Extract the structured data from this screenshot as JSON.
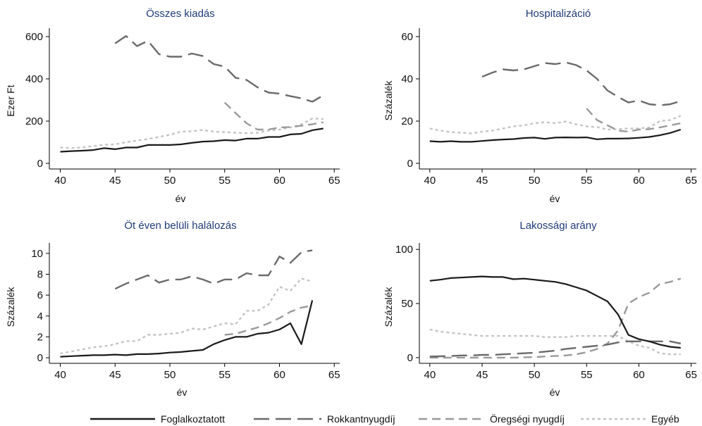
{
  "legend": [
    {
      "name": "Foglalkoztatott",
      "color": "#1a1a1a",
      "dash": ""
    },
    {
      "name": "Rokkantnyugdíj",
      "color": "#6b6b6b",
      "dash": "22,9"
    },
    {
      "name": "Öregségi nyugdíj",
      "color": "#9a9a9a",
      "dash": "12,7"
    },
    {
      "name": "Egyéb",
      "color": "#c4c4c4",
      "dash": "4,4"
    }
  ],
  "chart_data": [
    {
      "type": "line",
      "title": "Összes kiadás",
      "xlabel": "év",
      "ylabel": "Ezer Ft",
      "xlim": [
        39,
        65.5
      ],
      "ylim": [
        -20,
        640
      ],
      "xticks": [
        40,
        45,
        50,
        55,
        60,
        65
      ],
      "yticks": [
        0,
        200,
        400,
        600
      ],
      "series": [
        {
          "name": "Foglalkoztatott",
          "x": [
            40,
            41,
            42,
            43,
            44,
            45,
            46,
            47,
            48,
            49,
            50,
            51,
            52,
            53,
            54,
            55,
            56,
            57,
            58,
            59,
            60,
            61,
            62,
            63,
            64
          ],
          "y": [
            55,
            58,
            60,
            63,
            72,
            67,
            75,
            75,
            87,
            87,
            87,
            90,
            97,
            103,
            105,
            110,
            108,
            117,
            117,
            125,
            125,
            137,
            140,
            157,
            165
          ]
        },
        {
          "name": "Rokkantnyugdíj",
          "x": [
            45,
            46,
            47,
            48,
            49,
            50,
            51,
            52,
            53,
            54,
            55,
            56,
            57,
            58,
            59,
            60,
            61,
            62,
            63,
            64
          ],
          "y": [
            568,
            603,
            555,
            580,
            517,
            505,
            505,
            520,
            508,
            470,
            458,
            405,
            395,
            360,
            335,
            330,
            318,
            308,
            292,
            322
          ]
        },
        {
          "name": "Öregségi nyugdíj",
          "x": [
            55,
            56,
            57,
            58,
            59,
            60,
            61,
            62,
            63,
            64
          ],
          "y": [
            288,
            238,
            190,
            160,
            160,
            170,
            172,
            178,
            185,
            195
          ]
        },
        {
          "name": "Egyéb",
          "x": [
            40,
            41,
            42,
            43,
            44,
            45,
            46,
            47,
            48,
            49,
            50,
            51,
            52,
            53,
            54,
            55,
            56,
            57,
            58,
            59,
            60,
            61,
            62,
            63,
            64
          ],
          "y": [
            75,
            73,
            75,
            82,
            88,
            90,
            100,
            108,
            115,
            125,
            135,
            150,
            152,
            158,
            150,
            148,
            145,
            143,
            145,
            155,
            160,
            170,
            185,
            212,
            210
          ]
        }
      ]
    },
    {
      "type": "line",
      "title": "Hospitalizáció",
      "xlabel": "év",
      "ylabel": "Százalék",
      "xlim": [
        39,
        65.5
      ],
      "ylim": [
        -2,
        64
      ],
      "xticks": [
        40,
        45,
        50,
        55,
        60,
        65
      ],
      "yticks": [
        0,
        20,
        40,
        60
      ],
      "series": [
        {
          "name": "Foglalkoztatott",
          "x": [
            40,
            41,
            42,
            43,
            44,
            45,
            46,
            47,
            48,
            49,
            50,
            51,
            52,
            53,
            54,
            55,
            56,
            57,
            58,
            59,
            60,
            61,
            62,
            63,
            64
          ],
          "y": [
            10.5,
            10.2,
            10.5,
            10.2,
            10.2,
            10.6,
            11,
            11.3,
            11.5,
            12,
            12.2,
            11.6,
            12.2,
            12.3,
            12.2,
            12.3,
            11.4,
            11.7,
            11.7,
            11.8,
            12.1,
            12.5,
            13.3,
            14.4,
            16
          ]
        },
        {
          "name": "Rokkantnyugdíj",
          "x": [
            45,
            46,
            47,
            48,
            49,
            50,
            51,
            52,
            53,
            54,
            55,
            56,
            57,
            58,
            59,
            60,
            61,
            62,
            63,
            64
          ],
          "y": [
            41,
            43,
            44.5,
            44,
            44.5,
            46,
            47.5,
            47,
            47.8,
            46.5,
            44,
            40,
            34.5,
            31.5,
            28.8,
            29.8,
            28,
            27.5,
            28,
            29.5
          ]
        },
        {
          "name": "Öregségi nyugdíj",
          "x": [
            55,
            56,
            57,
            58,
            59,
            60,
            61,
            62,
            63,
            64
          ],
          "y": [
            26,
            20.5,
            18,
            15.5,
            15,
            16,
            16.2,
            17,
            18,
            19
          ]
        },
        {
          "name": "Egyéb",
          "x": [
            40,
            41,
            42,
            43,
            44,
            45,
            46,
            47,
            48,
            49,
            50,
            51,
            52,
            53,
            54,
            55,
            56,
            57,
            58,
            59,
            60,
            61,
            62,
            63,
            64
          ],
          "y": [
            16.5,
            15.5,
            14.8,
            14.5,
            14.2,
            15,
            15.5,
            16.5,
            17.5,
            18,
            19,
            19.5,
            19,
            19.8,
            18.5,
            17.5,
            17.2,
            16,
            16.2,
            16.5,
            16.5,
            17,
            20,
            20.5,
            22.5
          ]
        }
      ]
    },
    {
      "type": "line",
      "title": "Öt éven belüli halálozás",
      "xlabel": "év",
      "ylabel": "Százalék",
      "xlim": [
        39,
        65.5
      ],
      "ylim": [
        -0.4,
        11
      ],
      "xticks": [
        40,
        45,
        50,
        55,
        60,
        65
      ],
      "yticks": [
        0,
        2,
        4,
        6,
        8,
        10
      ],
      "series": [
        {
          "name": "Foglalkoztatott",
          "x": [
            40,
            41,
            42,
            43,
            44,
            45,
            46,
            47,
            48,
            49,
            50,
            51,
            52,
            53,
            54,
            55,
            56,
            57,
            58,
            59,
            60,
            61,
            62,
            63
          ],
          "y": [
            0.1,
            0.15,
            0.2,
            0.25,
            0.25,
            0.3,
            0.25,
            0.35,
            0.35,
            0.4,
            0.5,
            0.55,
            0.65,
            0.75,
            1.3,
            1.7,
            2,
            2,
            2.3,
            2.4,
            2.7,
            3.3,
            1.3,
            5.5
          ]
        },
        {
          "name": "Rokkantnyugdíj",
          "x": [
            45,
            46,
            47,
            48,
            49,
            50,
            51,
            52,
            53,
            54,
            55,
            56,
            57,
            58,
            59,
            60,
            61,
            62,
            63
          ],
          "y": [
            6.6,
            7.1,
            7.5,
            7.9,
            7.2,
            7.5,
            7.5,
            7.8,
            7.5,
            7.1,
            7.5,
            7.5,
            8.1,
            7.9,
            7.9,
            9.7,
            9.1,
            10.1,
            10.3
          ]
        },
        {
          "name": "Öregségi nyugdíj",
          "x": [
            55,
            56,
            57,
            58,
            59,
            60,
            61,
            62,
            63
          ],
          "y": [
            2.2,
            2.3,
            2.6,
            2.9,
            3.3,
            3.8,
            4.4,
            4.8,
            5
          ]
        },
        {
          "name": "Egyéb",
          "x": [
            40,
            41,
            42,
            43,
            44,
            45,
            46,
            47,
            48,
            49,
            50,
            51,
            52,
            53,
            54,
            55,
            56,
            57,
            58,
            59,
            60,
            61,
            62,
            63
          ],
          "y": [
            0.4,
            0.6,
            0.8,
            1,
            1.1,
            1.3,
            1.6,
            1.6,
            2.2,
            2.2,
            2.3,
            2.4,
            2.8,
            2.7,
            3,
            3.3,
            3.2,
            4.5,
            4.5,
            5.1,
            6.8,
            6.4,
            7.6,
            7.3
          ]
        }
      ]
    },
    {
      "type": "line",
      "title": "Lakossági arány",
      "xlabel": "év",
      "ylabel": "Százalék",
      "xlim": [
        39,
        65.5
      ],
      "ylim": [
        -4,
        106
      ],
      "xticks": [
        40,
        45,
        50,
        55,
        60,
        65
      ],
      "yticks": [
        0,
        50,
        100
      ],
      "series": [
        {
          "name": "Foglalkoztatott",
          "x": [
            40,
            41,
            42,
            43,
            44,
            45,
            46,
            47,
            48,
            49,
            50,
            51,
            52,
            53,
            54,
            55,
            56,
            57,
            58,
            59,
            60,
            61,
            62,
            63,
            64
          ],
          "y": [
            71,
            72,
            73.5,
            74,
            74.5,
            75,
            74.5,
            74.5,
            72.5,
            73,
            72,
            71,
            70,
            68,
            65,
            62,
            57,
            52,
            40,
            21,
            17,
            15,
            12,
            10,
            9
          ]
        },
        {
          "name": "Rokkantnyugdíj",
          "x": [
            40,
            41,
            42,
            43,
            44,
            45,
            46,
            47,
            48,
            49,
            50,
            51,
            52,
            53,
            54,
            55,
            56,
            57,
            58,
            59,
            60,
            61,
            62,
            63,
            64
          ],
          "y": [
            1,
            1.2,
            1.5,
            2,
            2,
            2.5,
            2.5,
            3,
            3.5,
            4,
            4.5,
            5.5,
            6.5,
            8,
            9,
            10,
            11,
            12,
            14,
            15,
            15,
            15,
            15,
            15,
            13
          ]
        },
        {
          "name": "Öregségi nyugdíj",
          "x": [
            40,
            41,
            42,
            43,
            44,
            45,
            46,
            47,
            48,
            49,
            50,
            51,
            52,
            53,
            54,
            55,
            56,
            57,
            58,
            59,
            60,
            61,
            62,
            63,
            64
          ],
          "y": [
            0,
            0,
            0,
            0,
            0,
            0,
            0,
            0,
            0,
            0.3,
            0.5,
            1,
            1.5,
            2,
            3,
            5,
            8,
            13,
            25,
            50,
            56,
            60,
            68,
            70,
            73
          ]
        },
        {
          "name": "Egyéb",
          "x": [
            40,
            41,
            42,
            43,
            44,
            45,
            46,
            47,
            48,
            49,
            50,
            51,
            52,
            53,
            54,
            55,
            56,
            57,
            58,
            59,
            60,
            61,
            62,
            63,
            64
          ],
          "y": [
            26,
            24,
            23,
            22,
            21,
            20,
            20,
            20,
            20,
            20,
            20,
            19,
            19,
            19,
            20,
            20,
            20,
            20,
            20,
            15,
            11,
            9,
            4,
            3,
            3
          ]
        }
      ]
    }
  ]
}
